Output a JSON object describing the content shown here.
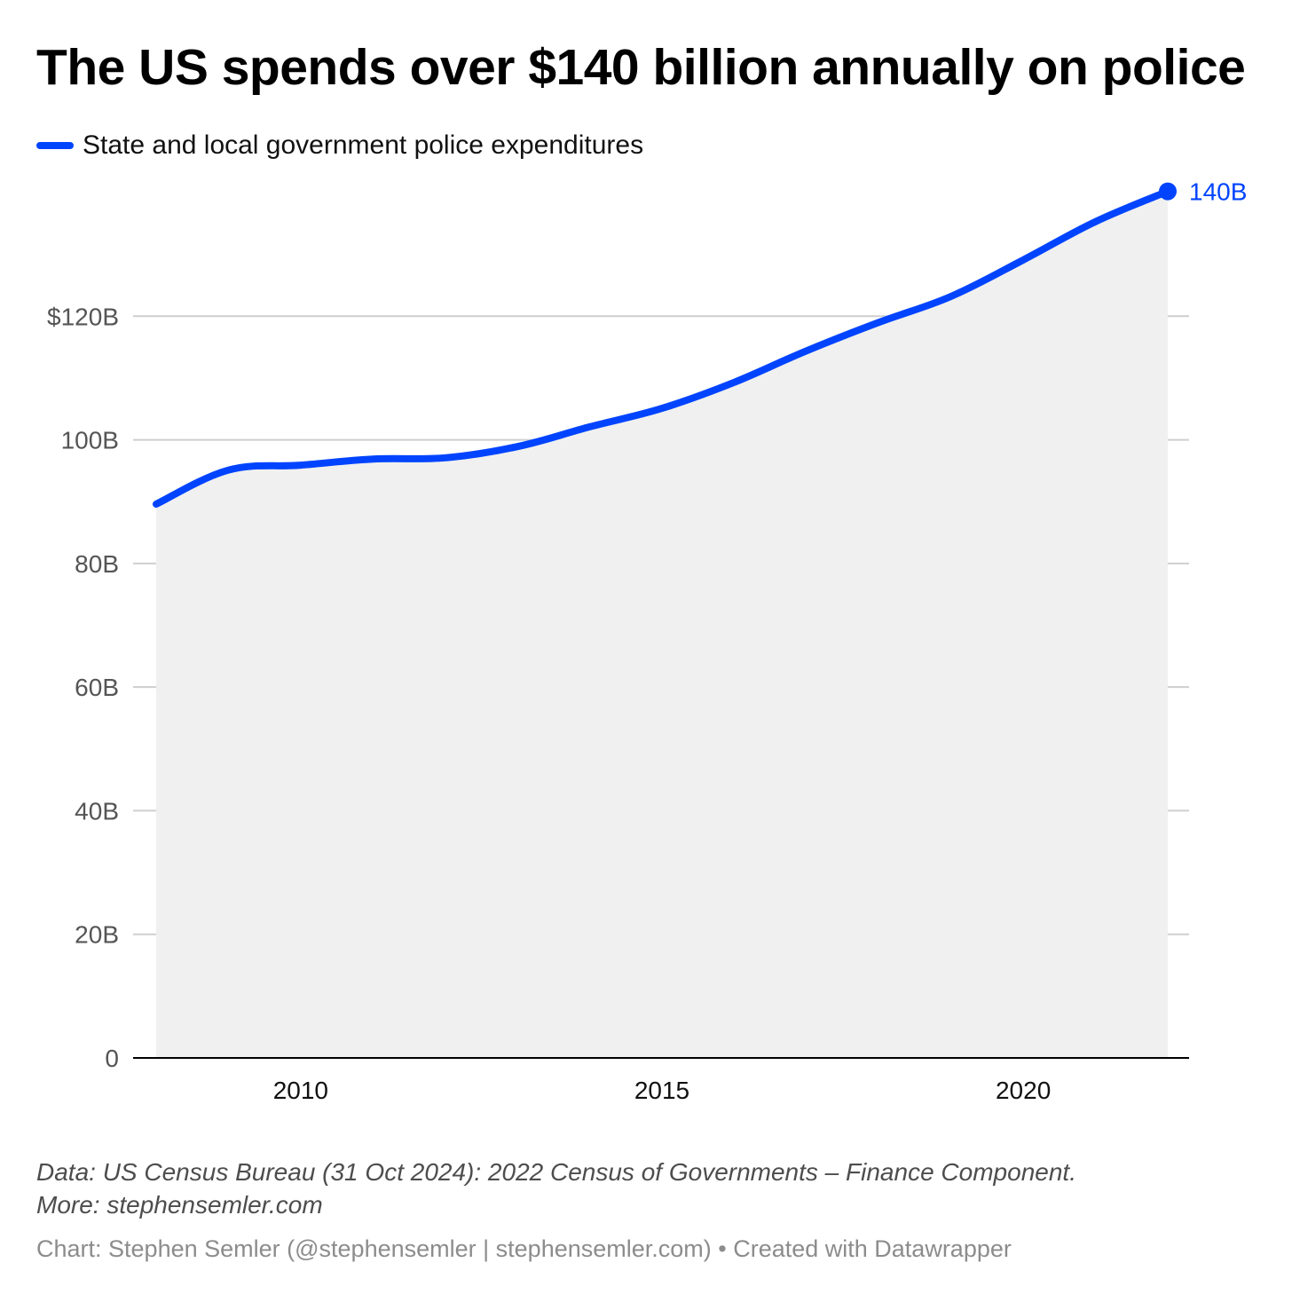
{
  "colors": {
    "series": "#0044ff",
    "area": "#f0f0f0",
    "grid": "#cfcfcf",
    "axis": "#000000",
    "tick_text": "#555555",
    "xtick_text": "#111111"
  },
  "chart_data": {
    "type": "line",
    "title": "The US spends over $140 billion annually on police",
    "xlabel": "",
    "ylabel": "",
    "legend_position": "top-left",
    "grid": true,
    "area_fill": true,
    "x": [
      2008,
      2009,
      2010,
      2011,
      2012,
      2013,
      2014,
      2015,
      2016,
      2017,
      2018,
      2019,
      2020,
      2021,
      2022
    ],
    "series": [
      {
        "name": "State and local government police expenditures",
        "values": [
          89.6,
          95.1,
          95.9,
          96.9,
          97.1,
          98.9,
          102.1,
          105.1,
          109.3,
          114.4,
          119.0,
          123.2,
          129.1,
          135.3,
          140.2
        ]
      }
    ],
    "xlim": [
      2006.3,
      2022.3
    ],
    "ylim": [
      0,
      140
    ],
    "yticks": [
      0,
      20,
      40,
      60,
      80,
      100,
      120
    ],
    "ytick_labels": [
      "0",
      "20B",
      "40B",
      "60B",
      "80B",
      "100B",
      "$120B"
    ],
    "xticks": [
      2010,
      2015,
      2020
    ],
    "xtick_labels": [
      "2010",
      "2015",
      "2020"
    ],
    "end_label": "140B"
  },
  "footer": {
    "note_line1": "Data: US Census Bureau (31 Oct 2024): 2022 Census of Governments – Finance Component.",
    "note_line2": "More: stephensemler.com",
    "credit": "Chart: Stephen Semler (@stephensemler | stephensemler.com) • Created with Datawrapper"
  }
}
